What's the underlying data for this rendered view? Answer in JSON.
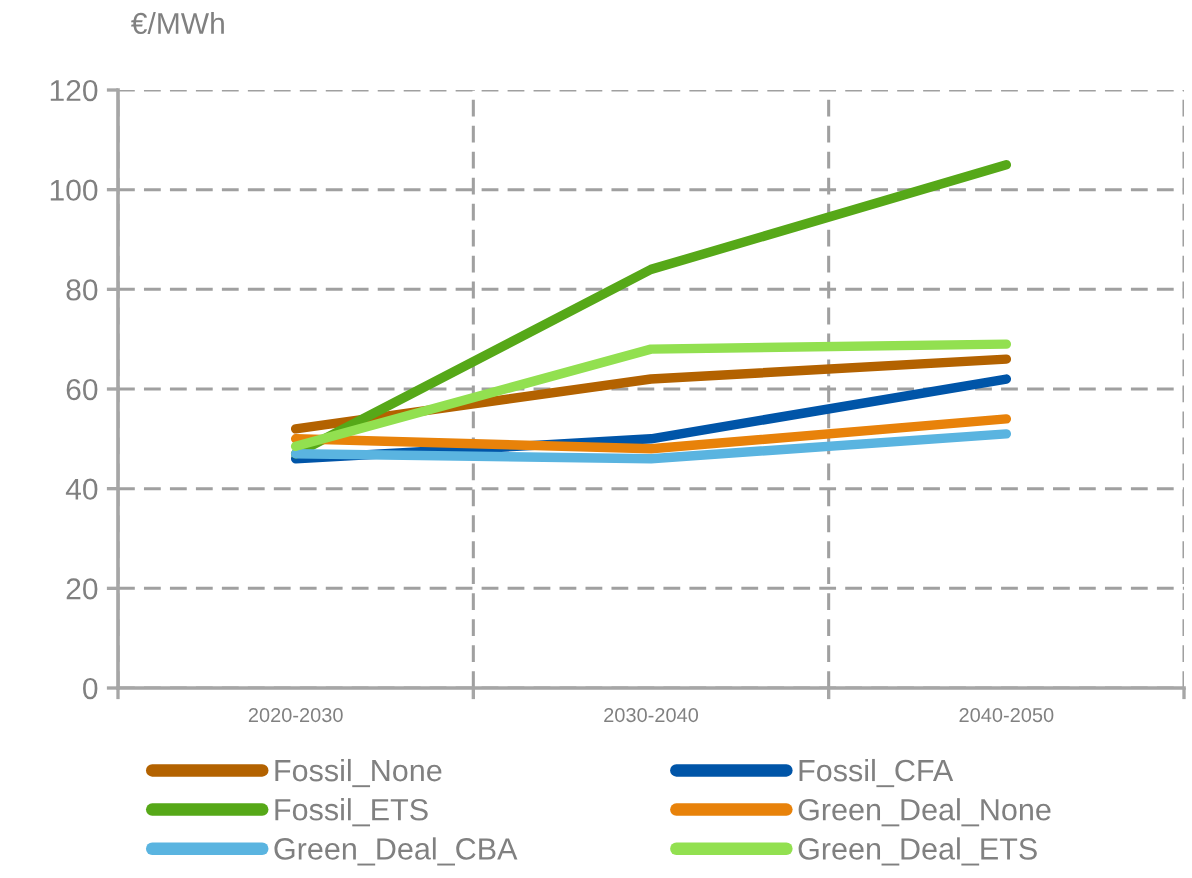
{
  "chart_data": {
    "type": "line",
    "ylabel": "€/MWh",
    "categories": [
      "2020-2030",
      "2030-2040",
      "2040-2050"
    ],
    "series": [
      {
        "name": "Fossil_None",
        "color": "#b36200",
        "values": [
          52,
          62,
          66
        ]
      },
      {
        "name": "Fossil_CFA",
        "color": "#0055a8",
        "values": [
          46,
          50,
          62
        ]
      },
      {
        "name": "Fossil_ETS",
        "color": "#56a818",
        "values": [
          47,
          84,
          105
        ]
      },
      {
        "name": "Green_Deal_None",
        "color": "#e8820a",
        "values": [
          50,
          48,
          54
        ]
      },
      {
        "name": "Green_Deal_CBA",
        "color": "#5ab4e0",
        "values": [
          47,
          46,
          51
        ]
      },
      {
        "name": "Green_Deal_ETS",
        "color": "#92e050",
        "values": [
          48.5,
          68,
          69
        ]
      }
    ],
    "ylim": [
      0,
      120
    ],
    "yticks": [
      0,
      20,
      40,
      60,
      80,
      100,
      120
    ],
    "grid": true,
    "legend": "bottom",
    "line_style": "solid"
  }
}
